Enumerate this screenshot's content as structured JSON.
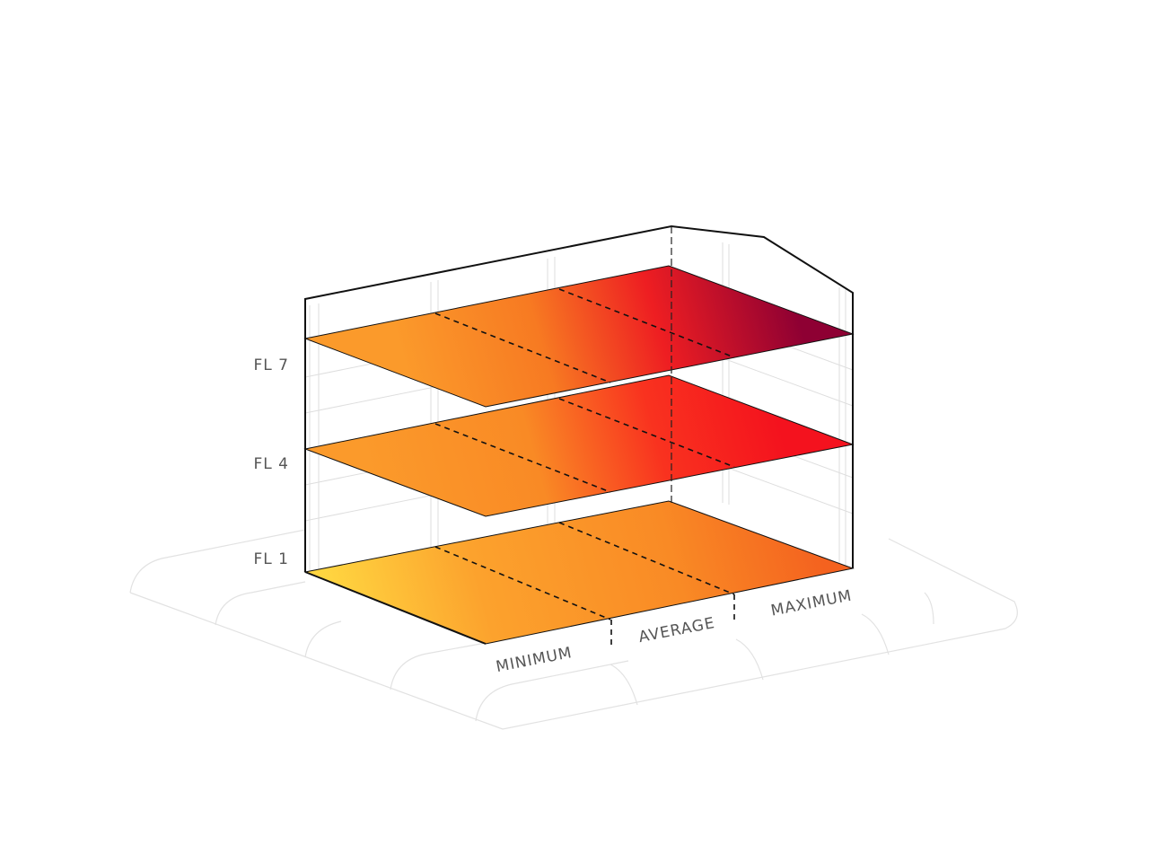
{
  "floors": [
    {
      "label": "FL 7"
    },
    {
      "label": "FL 4"
    },
    {
      "label": "FL 1"
    }
  ],
  "zones": [
    {
      "label": "MINIMUM"
    },
    {
      "label": "AVERAGE"
    },
    {
      "label": "MAXIMUM"
    }
  ]
}
